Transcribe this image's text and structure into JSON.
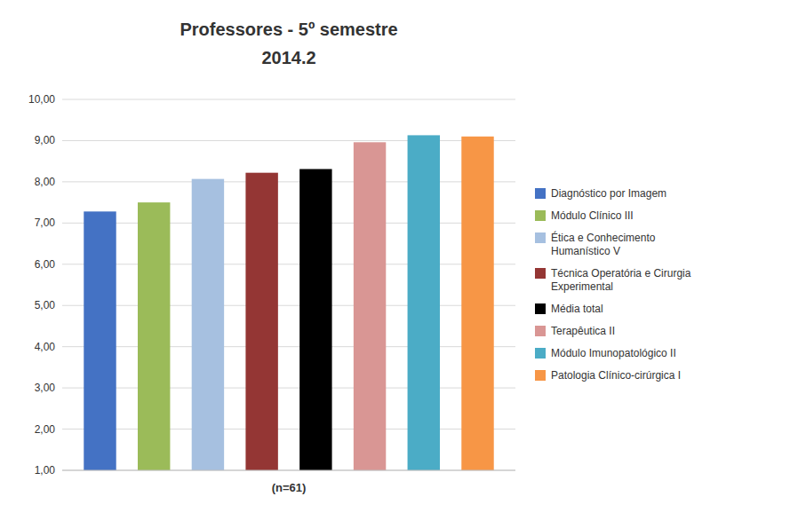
{
  "chart_data": {
    "type": "bar",
    "title": "Professores - 5º semestre",
    "subtitle": "2014.2",
    "categories": [
      "(n=61)"
    ],
    "series": [
      {
        "name": "Diagnóstico por Imagem",
        "color": "#4472C4",
        "values": [
          7.28
        ]
      },
      {
        "name": "Módulo Clínico III",
        "color": "#9BBB59",
        "values": [
          7.5
        ]
      },
      {
        "name": "Ética e Conhecimento\nHumanístico V",
        "color": "#A6C0E0",
        "values": [
          8.07
        ]
      },
      {
        "name": "Técnica Operatória e Cirurgia\nExperimental",
        "color": "#943634",
        "values": [
          8.22
        ]
      },
      {
        "name": "Média total",
        "color": "#000000",
        "values": [
          8.31
        ]
      },
      {
        "name": "Terapêutica II",
        "color": "#D99694",
        "values": [
          8.96
        ]
      },
      {
        "name": "Módulo Imunopatológico II",
        "color": "#4BACC6",
        "values": [
          9.13
        ]
      },
      {
        "name": "Patologia Clínico-cirúrgica I",
        "color": "#F79646",
        "values": [
          9.1
        ]
      }
    ],
    "ylim": [
      1.0,
      10.0
    ],
    "yticks": [
      {
        "value": 1.0,
        "label": "1,00"
      },
      {
        "value": 2.0,
        "label": "2,00"
      },
      {
        "value": 3.0,
        "label": "3,00"
      },
      {
        "value": 4.0,
        "label": "4,00"
      },
      {
        "value": 5.0,
        "label": "5,00"
      },
      {
        "value": 6.0,
        "label": "6,00"
      },
      {
        "value": 7.0,
        "label": "7,00"
      },
      {
        "value": 8.0,
        "label": "8,00"
      },
      {
        "value": 9.0,
        "label": "9,00"
      },
      {
        "value": 10.0,
        "label": "10,00"
      }
    ],
    "grid": true,
    "legend": "right"
  }
}
